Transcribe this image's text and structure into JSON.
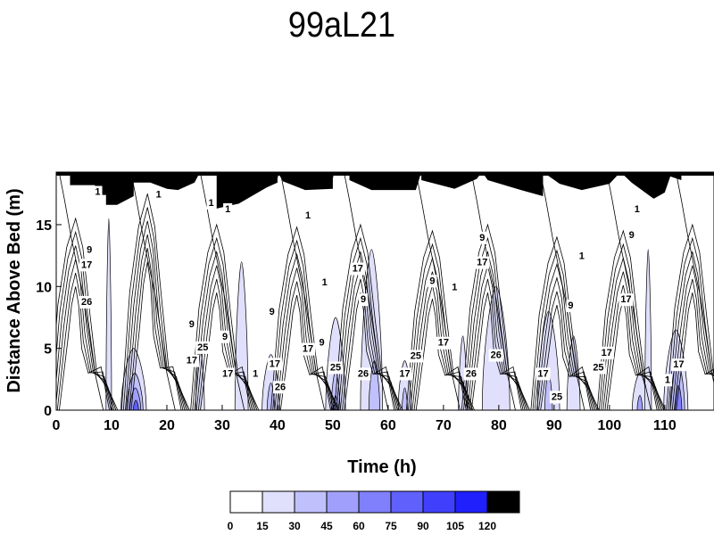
{
  "chart_data": {
    "type": "heatmap",
    "subtype": "filled-contour",
    "title": "99aL21",
    "xlabel": "Time (h)",
    "ylabel": "Distance Above Bed (m)",
    "xlim": [
      0,
      118.9
    ],
    "ylim": [
      0,
      19.25
    ],
    "xticks": [
      0,
      10,
      20,
      30,
      40,
      50,
      60,
      70,
      80,
      90,
      100,
      110
    ],
    "yticks": [
      0,
      5,
      10,
      15
    ],
    "grid": false,
    "colorbar": {
      "levels": [
        0,
        15,
        30,
        45,
        60,
        75,
        90,
        105,
        120
      ],
      "colors": [
        "#ffffff",
        "#e0e0fc",
        "#c0c0fc",
        "#a0a0fc",
        "#8080fc",
        "#6060fc",
        "#4040fc",
        "#2020fc",
        "#000000"
      ],
      "placement": "bottom"
    },
    "surface_mask": [
      [
        2.5,
        19.25
      ],
      [
        2.5,
        18.2
      ],
      [
        7,
        18.2
      ],
      [
        7,
        17.4
      ],
      [
        9,
        17.4
      ],
      [
        9,
        16.6
      ],
      [
        11,
        16.6
      ],
      [
        14,
        17.3
      ],
      [
        14,
        18.4
      ],
      [
        17,
        18.4
      ],
      [
        17,
        19.25
      ],
      [
        17,
        18.4
      ],
      [
        20,
        17.9
      ],
      [
        22,
        17.8
      ],
      [
        25,
        18.4
      ],
      [
        26,
        19.25
      ],
      [
        29,
        19.25
      ],
      [
        29,
        16.3
      ],
      [
        33,
        16.7
      ],
      [
        38,
        18
      ],
      [
        40,
        18.4
      ],
      [
        40,
        19.25
      ],
      [
        41,
        18.5
      ],
      [
        45,
        17.8
      ],
      [
        50,
        17.9
      ],
      [
        50,
        19.25
      ],
      [
        53,
        19.25
      ],
      [
        53,
        18.6
      ],
      [
        57,
        17.8
      ],
      [
        65,
        17.8
      ],
      [
        66,
        19.25
      ],
      [
        66,
        18.6
      ],
      [
        72,
        17.9
      ],
      [
        76,
        18.7
      ],
      [
        77,
        19.25
      ],
      [
        78,
        18.6
      ],
      [
        84,
        17.8
      ],
      [
        88,
        17.3
      ],
      [
        88,
        19.25
      ],
      [
        91,
        18.3
      ],
      [
        95,
        17.8
      ],
      [
        100,
        18.3
      ],
      [
        102,
        19.25
      ],
      [
        104,
        18.4
      ],
      [
        108,
        17.1
      ],
      [
        110,
        17.6
      ],
      [
        111,
        18.9
      ],
      [
        113,
        18.6
      ],
      [
        113,
        19.25
      ]
    ],
    "filled_regions": [
      {
        "t": 9.5,
        "w": 0.5,
        "h": 15.5,
        "level": 1
      },
      {
        "t": 14,
        "w": 2.3,
        "h": 5,
        "level": 1
      },
      {
        "t": 14.2,
        "w": 1.5,
        "h": 3,
        "level": 2
      },
      {
        "t": 14.3,
        "w": 1,
        "h": 1.8,
        "level": 3
      },
      {
        "t": 14.4,
        "w": 0.5,
        "h": 0.8,
        "level": 5
      },
      {
        "t": 26,
        "w": 0.8,
        "h": 5,
        "level": 1
      },
      {
        "t": 33.5,
        "w": 1.2,
        "h": 12,
        "level": 1
      },
      {
        "t": 38.8,
        "w": 1.6,
        "h": 4.5,
        "level": 1
      },
      {
        "t": 38.8,
        "w": 0.7,
        "h": 2.2,
        "level": 2
      },
      {
        "t": 50.5,
        "w": 1.8,
        "h": 7.5,
        "level": 1
      },
      {
        "t": 50.5,
        "w": 0.8,
        "h": 3.2,
        "level": 2
      },
      {
        "t": 50.5,
        "w": 0.4,
        "h": 1.2,
        "level": 3
      },
      {
        "t": 57,
        "w": 2,
        "h": 13,
        "level": 1
      },
      {
        "t": 57.5,
        "w": 1,
        "h": 4,
        "level": 2
      },
      {
        "t": 63,
        "w": 1.2,
        "h": 4,
        "level": 1
      },
      {
        "t": 63,
        "w": 0.5,
        "h": 1.8,
        "level": 2
      },
      {
        "t": 73.5,
        "w": 0.8,
        "h": 6,
        "level": 1
      },
      {
        "t": 79.5,
        "w": 2.5,
        "h": 10,
        "level": 1
      },
      {
        "t": 89,
        "w": 2,
        "h": 8,
        "level": 1
      },
      {
        "t": 89,
        "w": 0.7,
        "h": 3,
        "level": 2
      },
      {
        "t": 93.5,
        "w": 1.2,
        "h": 6,
        "level": 1
      },
      {
        "t": 105.5,
        "w": 1.4,
        "h": 3,
        "level": 1
      },
      {
        "t": 105.5,
        "w": 0.5,
        "h": 1.2,
        "level": 3
      },
      {
        "t": 107,
        "w": 0.6,
        "h": 13,
        "level": 1
      },
      {
        "t": 112,
        "w": 2.2,
        "h": 6.5,
        "level": 1
      },
      {
        "t": 112.3,
        "w": 1.3,
        "h": 4,
        "level": 2
      },
      {
        "t": 112.5,
        "w": 0.6,
        "h": 2,
        "level": 4
      }
    ],
    "contour_peaks": [
      {
        "t": 3.5,
        "h": 15.5
      },
      {
        "t": 16.5,
        "h": 17.5
      },
      {
        "t": 29,
        "h": 15
      },
      {
        "t": 43.5,
        "h": 14.8
      },
      {
        "t": 55,
        "h": 15
      },
      {
        "t": 68,
        "h": 14.5
      },
      {
        "t": 78,
        "h": 15
      },
      {
        "t": 90.5,
        "h": 14
      },
      {
        "t": 102.5,
        "h": 14.5
      },
      {
        "t": 115,
        "h": 15
      }
    ],
    "contour_labels": [
      {
        "t": 7.5,
        "z": 17.7,
        "text": "1"
      },
      {
        "t": 18.5,
        "z": 17.5,
        "text": "1"
      },
      {
        "t": 28,
        "z": 16.8,
        "text": "1"
      },
      {
        "t": 31,
        "z": 16.3,
        "text": "1"
      },
      {
        "t": 45.5,
        "z": 15.8,
        "text": "1"
      },
      {
        "t": 48.5,
        "z": 10.4,
        "text": "1"
      },
      {
        "t": 6,
        "z": 13,
        "text": "9"
      },
      {
        "t": 5.5,
        "z": 11.8,
        "text": "17"
      },
      {
        "t": 5.5,
        "z": 8.8,
        "text": "26"
      },
      {
        "t": 24.5,
        "z": 7,
        "text": "9"
      },
      {
        "t": 26.5,
        "z": 7,
        "text": "25"
      },
      {
        "t": 24.5,
        "z": 5,
        "text": "17"
      },
      {
        "t": 30.5,
        "z": 6,
        "text": "9"
      },
      {
        "t": 31,
        "z": 3,
        "text": "17"
      },
      {
        "t": 36,
        "z": 3,
        "text": "1"
      },
      {
        "t": 39,
        "z": 8,
        "text": "9"
      },
      {
        "t": 39.5,
        "z": 3.8,
        "text": "17"
      },
      {
        "t": 40.5,
        "z": 3.8,
        "text": "26"
      },
      {
        "t": 45.5,
        "z": 5,
        "text": "17"
      },
      {
        "t": 48,
        "z": 5.5,
        "text": "9"
      },
      {
        "t": 50.5,
        "z": 3.5,
        "text": "25"
      },
      {
        "t": 54.5,
        "z": 11.5,
        "text": "17"
      },
      {
        "t": 55.5,
        "z": 9,
        "text": "9"
      },
      {
        "t": 55.5,
        "z": 3,
        "text": "26"
      },
      {
        "t": 63,
        "z": 3,
        "text": "17"
      },
      {
        "t": 65,
        "z": 3.5,
        "text": "25"
      },
      {
        "t": 68,
        "z": 10.5,
        "text": "9"
      },
      {
        "t": 70,
        "z": 5.5,
        "text": "17"
      },
      {
        "t": 72,
        "z": 10,
        "text": "1"
      },
      {
        "t": 75,
        "z": 3,
        "text": "26"
      },
      {
        "t": 77,
        "z": 14,
        "text": "9"
      },
      {
        "t": 77,
        "z": 12,
        "text": "17"
      },
      {
        "t": 79.5,
        "z": 4.5,
        "text": "26"
      },
      {
        "t": 88,
        "z": 3,
        "text": "17"
      },
      {
        "t": 90.5,
        "z": 3,
        "text": "25"
      },
      {
        "t": 93,
        "z": 8.5,
        "text": "9"
      },
      {
        "t": 95,
        "z": 12.5,
        "text": "1"
      },
      {
        "t": 98,
        "z": 3.5,
        "text": "25"
      },
      {
        "t": 99.5,
        "z": 4.7,
        "text": "17"
      },
      {
        "t": 103,
        "z": 9,
        "text": "17"
      },
      {
        "t": 104,
        "z": 14.2,
        "text": "9"
      },
      {
        "t": 105,
        "z": 16.3,
        "text": "1"
      },
      {
        "t": 110.5,
        "z": 2.5,
        "text": "1"
      },
      {
        "t": 112.5,
        "z": 2.8,
        "text": "17"
      }
    ]
  }
}
